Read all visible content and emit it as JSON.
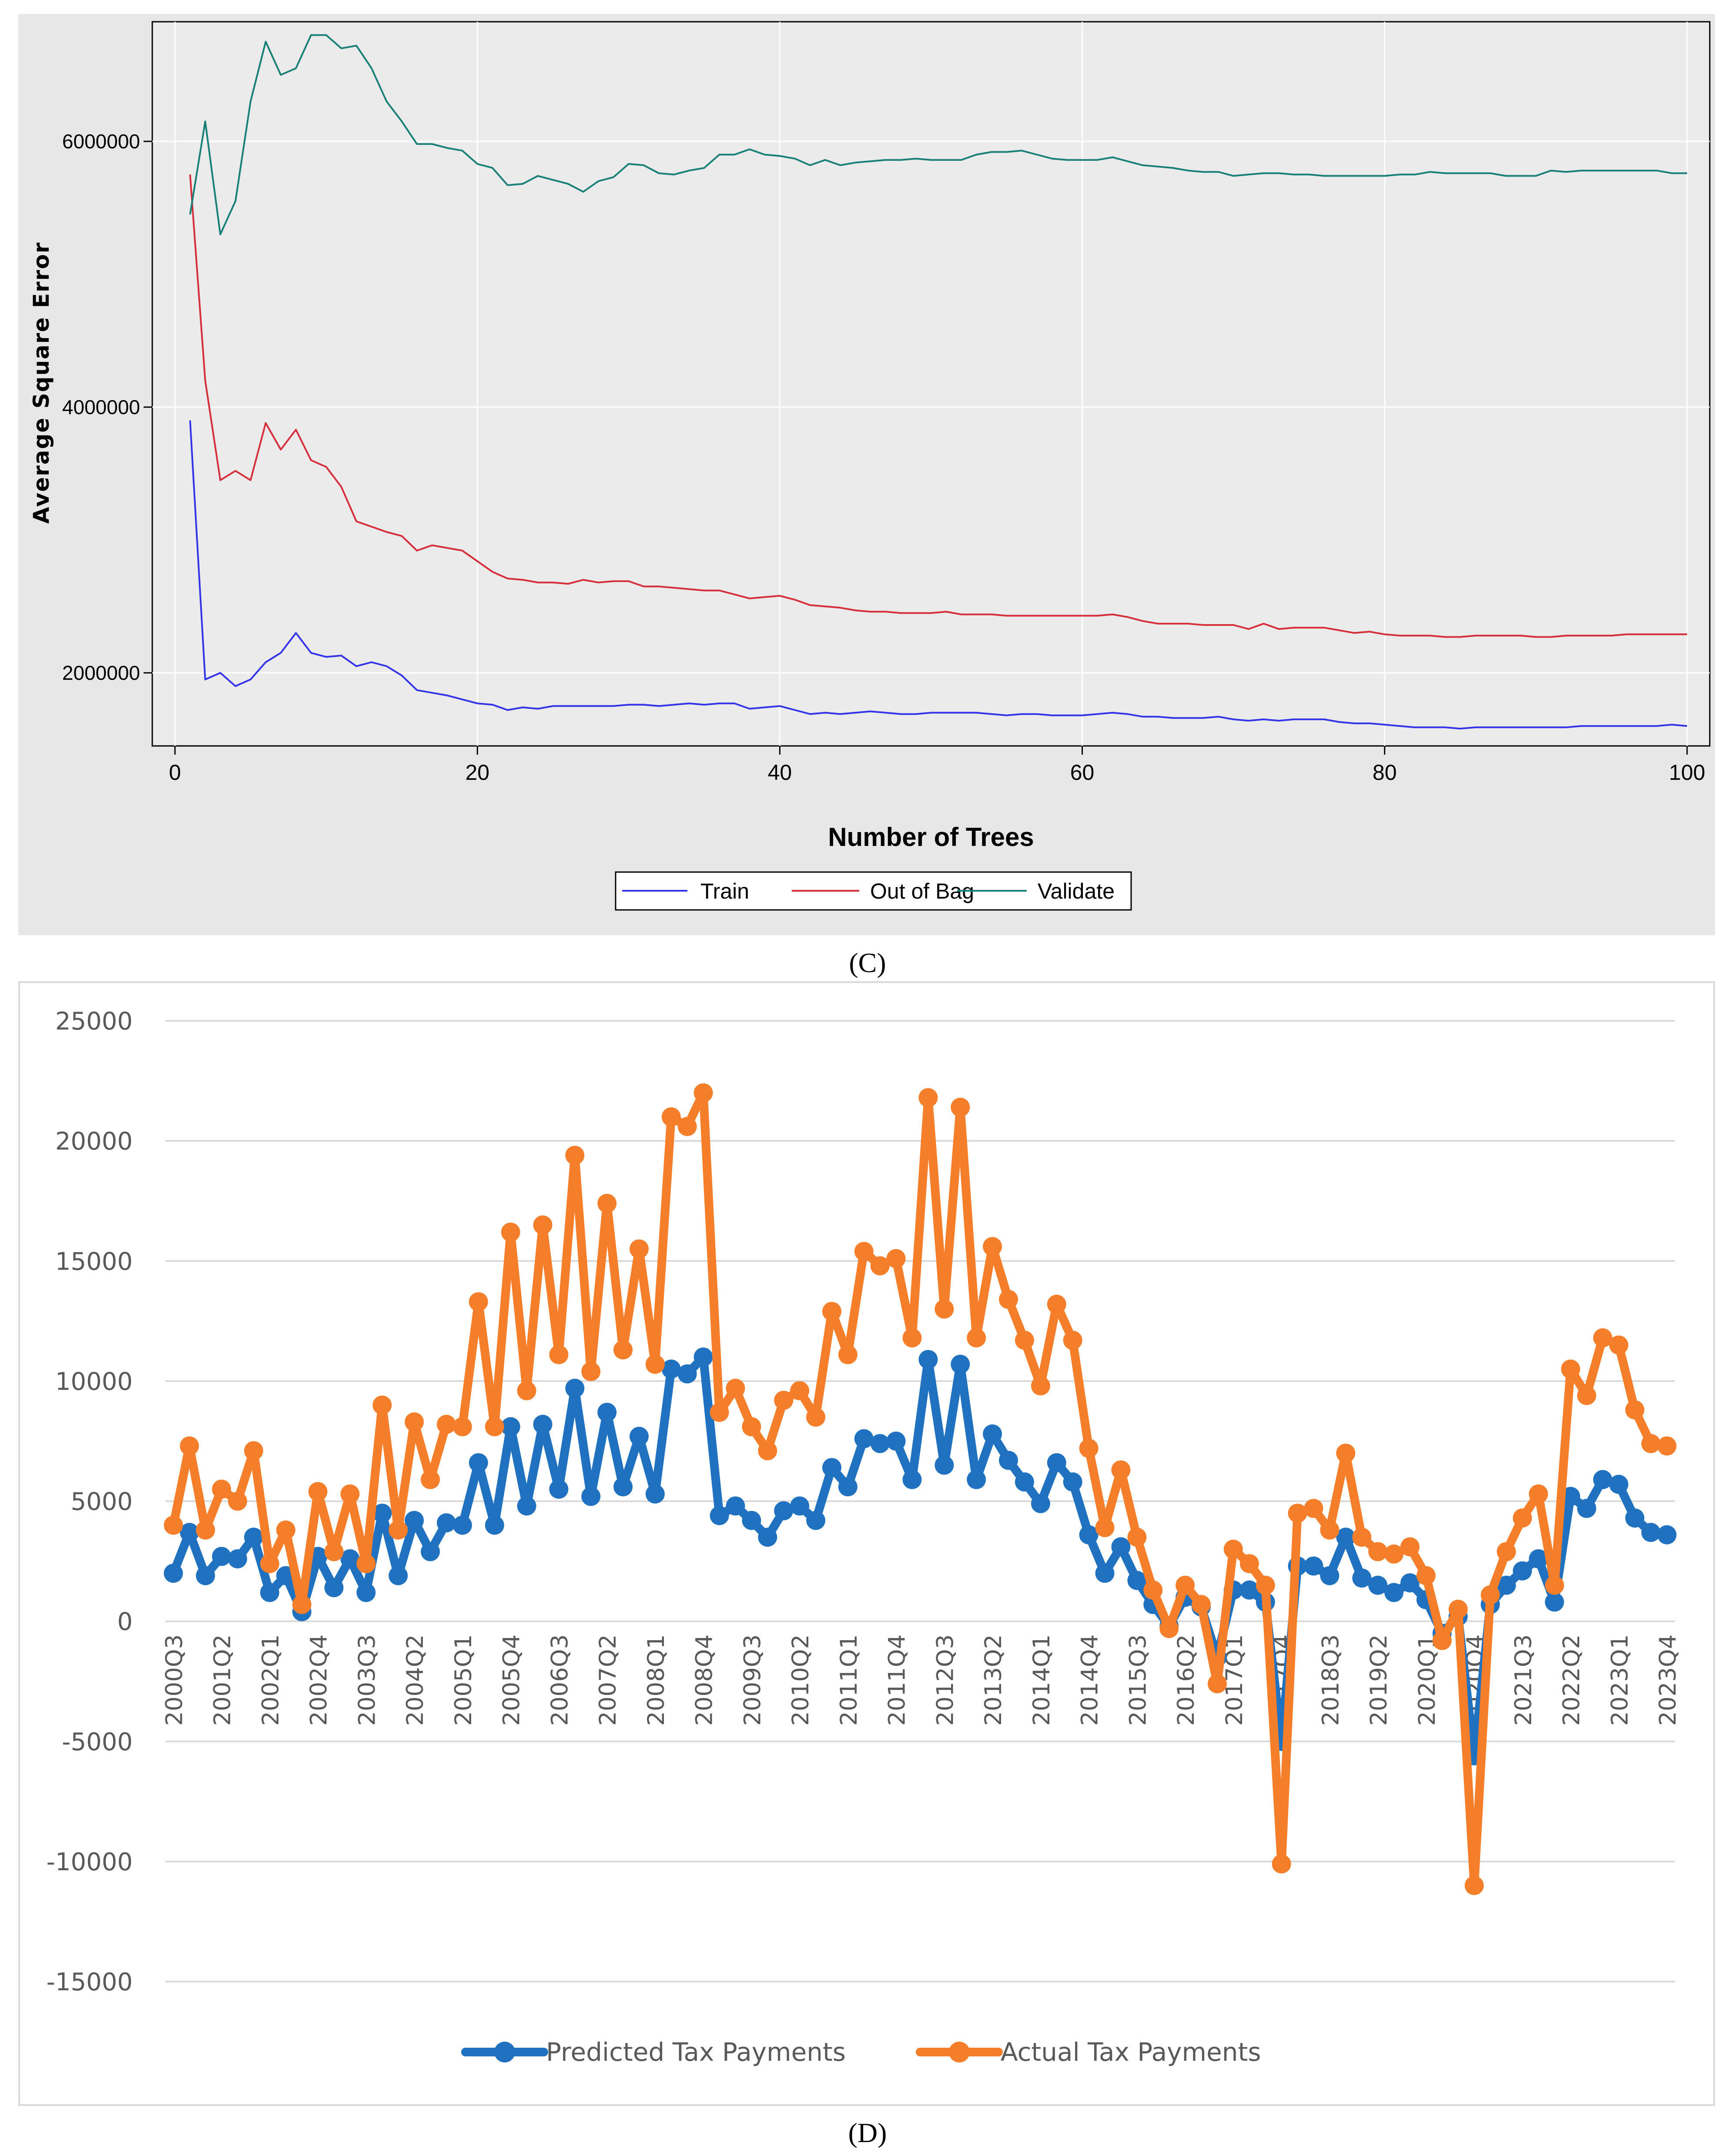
{
  "figure_labels": {
    "c": "(C)",
    "d": "(D)"
  },
  "chart_data": [
    {
      "type": "line",
      "title": "",
      "xlabel": "Number of Trees",
      "ylabel": "Average Square Error",
      "xlim": [
        -1.5,
        101.5
      ],
      "ylim": [
        1450000,
        6900000
      ],
      "xticks": [
        0,
        20,
        40,
        60,
        80,
        100
      ],
      "yticks": [
        2000000,
        4000000,
        6000000
      ],
      "ytick_labels": [
        "2000000",
        "4000000",
        "6000000"
      ],
      "grid": true,
      "legend_position": "bottom-center",
      "x": [
        1,
        2,
        3,
        4,
        5,
        6,
        7,
        8,
        9,
        10,
        11,
        12,
        13,
        14,
        15,
        16,
        17,
        18,
        19,
        20,
        21,
        22,
        23,
        24,
        25,
        26,
        27,
        28,
        29,
        30,
        31,
        32,
        33,
        34,
        35,
        36,
        37,
        38,
        39,
        40,
        41,
        42,
        43,
        44,
        45,
        46,
        47,
        48,
        49,
        50,
        51,
        52,
        53,
        54,
        55,
        56,
        57,
        58,
        59,
        60,
        61,
        62,
        63,
        64,
        65,
        66,
        67,
        68,
        69,
        70,
        71,
        72,
        73,
        74,
        75,
        76,
        77,
        78,
        79,
        80,
        81,
        82,
        83,
        84,
        85,
        86,
        87,
        88,
        89,
        90,
        91,
        92,
        93,
        94,
        95,
        96,
        97,
        98,
        99,
        100
      ],
      "series": [
        {
          "name": "Train",
          "color": "#3535e8",
          "values": [
            3900000,
            1950000,
            2000000,
            1900000,
            1950000,
            2080000,
            2150000,
            2300000,
            2150000,
            2120000,
            2130000,
            2050000,
            2080000,
            2050000,
            1980000,
            1870000,
            1850000,
            1830000,
            1800000,
            1770000,
            1760000,
            1720000,
            1740000,
            1730000,
            1750000,
            1750000,
            1750000,
            1750000,
            1750000,
            1760000,
            1760000,
            1750000,
            1760000,
            1770000,
            1760000,
            1770000,
            1770000,
            1730000,
            1740000,
            1750000,
            1720000,
            1690000,
            1700000,
            1690000,
            1700000,
            1710000,
            1700000,
            1690000,
            1690000,
            1700000,
            1700000,
            1700000,
            1700000,
            1690000,
            1680000,
            1690000,
            1690000,
            1680000,
            1680000,
            1680000,
            1690000,
            1700000,
            1690000,
            1670000,
            1670000,
            1660000,
            1660000,
            1660000,
            1670000,
            1650000,
            1640000,
            1650000,
            1640000,
            1650000,
            1650000,
            1650000,
            1630000,
            1620000,
            1620000,
            1610000,
            1600000,
            1590000,
            1590000,
            1590000,
            1580000,
            1590000,
            1590000,
            1590000,
            1590000,
            1590000,
            1590000,
            1590000,
            1600000,
            1600000,
            1600000,
            1600000,
            1600000,
            1600000,
            1610000,
            1600000
          ]
        },
        {
          "name": "Out of Bag",
          "color": "#d62f3c",
          "values": [
            5750000,
            4200000,
            3450000,
            3520000,
            3450000,
            3880000,
            3680000,
            3830000,
            3600000,
            3550000,
            3400000,
            3140000,
            3100000,
            3060000,
            3030000,
            2920000,
            2960000,
            2940000,
            2920000,
            2840000,
            2760000,
            2710000,
            2700000,
            2680000,
            2680000,
            2670000,
            2700000,
            2680000,
            2690000,
            2690000,
            2650000,
            2650000,
            2640000,
            2630000,
            2620000,
            2620000,
            2590000,
            2560000,
            2570000,
            2580000,
            2550000,
            2510000,
            2500000,
            2490000,
            2470000,
            2460000,
            2460000,
            2450000,
            2450000,
            2450000,
            2460000,
            2440000,
            2440000,
            2440000,
            2430000,
            2430000,
            2430000,
            2430000,
            2430000,
            2430000,
            2430000,
            2440000,
            2420000,
            2390000,
            2370000,
            2370000,
            2370000,
            2360000,
            2360000,
            2360000,
            2330000,
            2370000,
            2330000,
            2340000,
            2340000,
            2340000,
            2320000,
            2300000,
            2310000,
            2290000,
            2280000,
            2280000,
            2280000,
            2270000,
            2270000,
            2280000,
            2280000,
            2280000,
            2280000,
            2270000,
            2270000,
            2280000,
            2280000,
            2280000,
            2280000,
            2290000,
            2290000,
            2290000,
            2290000,
            2290000
          ]
        },
        {
          "name": "Validate",
          "color": "#198078",
          "values": [
            5450000,
            6150000,
            5300000,
            5550000,
            6300000,
            6750000,
            6500000,
            6550000,
            6800000,
            6800000,
            6700000,
            6720000,
            6550000,
            6300000,
            6150000,
            5980000,
            5980000,
            5950000,
            5930000,
            5830000,
            5800000,
            5670000,
            5680000,
            5740000,
            5710000,
            5680000,
            5620000,
            5700000,
            5730000,
            5830000,
            5820000,
            5760000,
            5750000,
            5780000,
            5800000,
            5900000,
            5900000,
            5940000,
            5900000,
            5890000,
            5870000,
            5820000,
            5860000,
            5820000,
            5840000,
            5850000,
            5860000,
            5860000,
            5870000,
            5860000,
            5860000,
            5860000,
            5900000,
            5920000,
            5920000,
            5930000,
            5900000,
            5870000,
            5860000,
            5860000,
            5860000,
            5880000,
            5850000,
            5820000,
            5810000,
            5800000,
            5780000,
            5770000,
            5770000,
            5740000,
            5750000,
            5760000,
            5760000,
            5750000,
            5750000,
            5740000,
            5740000,
            5740000,
            5740000,
            5740000,
            5750000,
            5750000,
            5770000,
            5760000,
            5760000,
            5760000,
            5760000,
            5740000,
            5740000,
            5740000,
            5780000,
            5770000,
            5780000,
            5780000,
            5780000,
            5780000,
            5780000,
            5780000,
            5760000,
            5760000
          ]
        }
      ]
    },
    {
      "type": "line",
      "title": "",
      "xlabel": "",
      "ylabel": "",
      "ylim": [
        -15000,
        25000
      ],
      "yticks": [
        -15000,
        -10000,
        -5000,
        0,
        5000,
        10000,
        15000,
        20000,
        25000
      ],
      "grid": true,
      "legend_position": "bottom-center",
      "x_tick_labels": [
        "2000Q3",
        "2001Q2",
        "2002Q1",
        "2002Q4",
        "2003Q3",
        "2004Q2",
        "2005Q1",
        "2005Q4",
        "2006Q3",
        "2007Q2",
        "2008Q1",
        "2008Q4",
        "2009Q3",
        "2010Q2",
        "2011Q1",
        "2011Q4",
        "2012Q3",
        "2013Q2",
        "2014Q1",
        "2014Q4",
        "2015Q3",
        "2016Q2",
        "2017Q1",
        "2017Q4",
        "2018Q3",
        "2019Q2",
        "2020Q1",
        "2020Q4",
        "2021Q3",
        "2022Q2",
        "2023Q1",
        "2023Q4"
      ],
      "series": [
        {
          "name": "Predicted Tax Payments",
          "color": "#2072c0",
          "values": [
            2000,
            3700,
            1900,
            2700,
            2600,
            3500,
            1200,
            1900,
            400,
            2700,
            1400,
            2600,
            1200,
            4500,
            1900,
            4200,
            2900,
            4100,
            4000,
            6600,
            4000,
            8100,
            4800,
            8200,
            5500,
            9700,
            5200,
            8700,
            5600,
            7700,
            5300,
            10500,
            10300,
            11000,
            4400,
            4800,
            4200,
            3500,
            4600,
            4800,
            4200,
            6400,
            5600,
            7600,
            7400,
            7500,
            5900,
            10900,
            6500,
            10700,
            5900,
            7800,
            6700,
            5800,
            4900,
            6600,
            5800,
            3600,
            2000,
            3100,
            1700,
            700,
            -200,
            1000,
            600,
            -1500,
            1300,
            1300,
            800,
            -5000,
            2300,
            2300,
            1900,
            3500,
            1800,
            1500,
            1200,
            1600,
            900,
            -500,
            200,
            -5600,
            700,
            1500,
            2100,
            2600,
            800,
            5200,
            4700,
            5900,
            5700,
            4300,
            3700,
            3600
          ]
        },
        {
          "name": "Actual Tax Payments",
          "color": "#f47e2a",
          "values": [
            4000,
            7300,
            3800,
            5500,
            5000,
            7100,
            2400,
            3800,
            700,
            5400,
            2900,
            5300,
            2400,
            9000,
            3800,
            8300,
            5900,
            8200,
            8100,
            13300,
            8100,
            16200,
            9600,
            16500,
            11100,
            19400,
            10400,
            17400,
            11300,
            15500,
            10700,
            21000,
            20600,
            22000,
            8700,
            9700,
            8100,
            7100,
            9200,
            9600,
            8500,
            12900,
            11100,
            15400,
            14800,
            15100,
            11800,
            21800,
            13000,
            21400,
            11800,
            15600,
            13400,
            11700,
            9800,
            13200,
            11700,
            7200,
            3900,
            6300,
            3500,
            1300,
            -300,
            1500,
            700,
            -2600,
            3000,
            2400,
            1500,
            -10100,
            4500,
            4700,
            3800,
            7000,
            3500,
            2900,
            2800,
            3100,
            1900,
            -800,
            500,
            -11000,
            1100,
            2900,
            4300,
            5300,
            1500,
            10500,
            9400,
            11800,
            11500,
            8800,
            7400,
            7300
          ]
        }
      ]
    }
  ]
}
